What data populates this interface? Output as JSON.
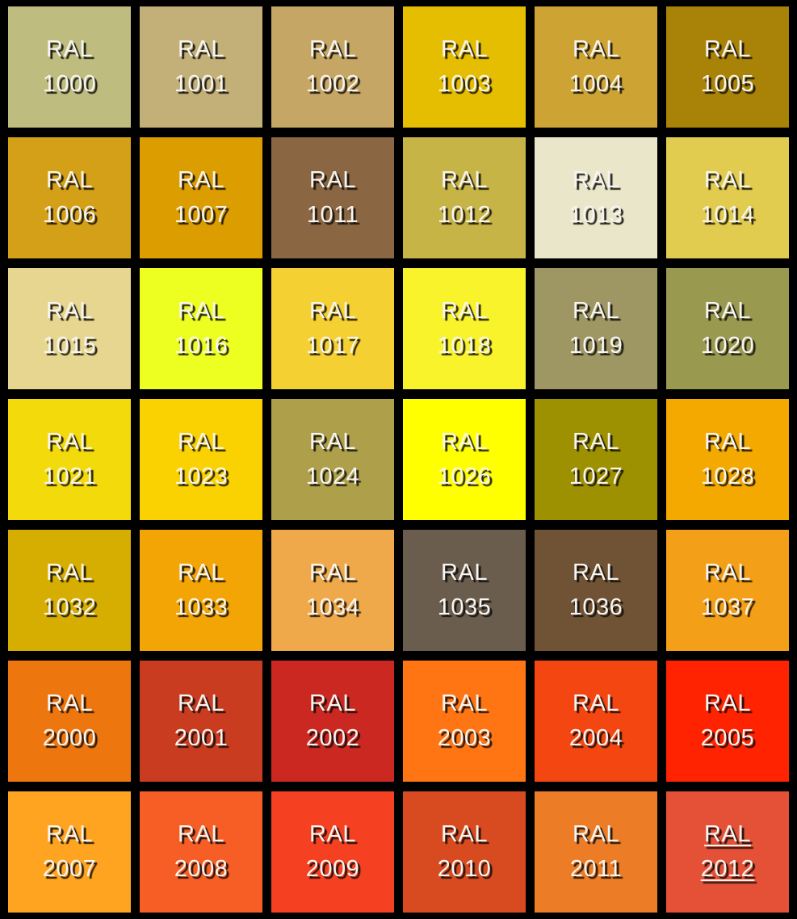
{
  "app": {
    "background_color": "#000000",
    "text_color": "#F7F5F2",
    "text_shadow_color": "#0F0D0A",
    "selected_code": "2012"
  },
  "grid": {
    "columns": 6,
    "rows": 7
  },
  "swatches": [
    {
      "prefix": "RAL",
      "code": "1000",
      "hex": "#BEBD7F",
      "selected": false
    },
    {
      "prefix": "RAL",
      "code": "1001",
      "hex": "#C2B078",
      "selected": false
    },
    {
      "prefix": "RAL",
      "code": "1002",
      "hex": "#C6A664",
      "selected": false
    },
    {
      "prefix": "RAL",
      "code": "1003",
      "hex": "#E5BE01",
      "selected": false
    },
    {
      "prefix": "RAL",
      "code": "1004",
      "hex": "#CDA434",
      "selected": false
    },
    {
      "prefix": "RAL",
      "code": "1005",
      "hex": "#A98307",
      "selected": false
    },
    {
      "prefix": "RAL",
      "code": "1006",
      "hex": "#D4A017",
      "selected": false
    },
    {
      "prefix": "RAL",
      "code": "1007",
      "hex": "#DC9D00",
      "selected": false
    },
    {
      "prefix": "RAL",
      "code": "1011",
      "hex": "#8A6642",
      "selected": false
    },
    {
      "prefix": "RAL",
      "code": "1012",
      "hex": "#C7B446",
      "selected": false
    },
    {
      "prefix": "RAL",
      "code": "1013",
      "hex": "#EAE6CA",
      "selected": false
    },
    {
      "prefix": "RAL",
      "code": "1014",
      "hex": "#E1CC4F",
      "selected": false
    },
    {
      "prefix": "RAL",
      "code": "1015",
      "hex": "#E6D690",
      "selected": false
    },
    {
      "prefix": "RAL",
      "code": "1016",
      "hex": "#EDFF21",
      "selected": false
    },
    {
      "prefix": "RAL",
      "code": "1017",
      "hex": "#F5D033",
      "selected": false
    },
    {
      "prefix": "RAL",
      "code": "1018",
      "hex": "#F8F32B",
      "selected": false
    },
    {
      "prefix": "RAL",
      "code": "1019",
      "hex": "#9E9764",
      "selected": false
    },
    {
      "prefix": "RAL",
      "code": "1020",
      "hex": "#999950",
      "selected": false
    },
    {
      "prefix": "RAL",
      "code": "1021",
      "hex": "#F3DA0B",
      "selected": false
    },
    {
      "prefix": "RAL",
      "code": "1023",
      "hex": "#FAD201",
      "selected": false
    },
    {
      "prefix": "RAL",
      "code": "1024",
      "hex": "#AEA04B",
      "selected": false
    },
    {
      "prefix": "RAL",
      "code": "1026",
      "hex": "#FFFF00",
      "selected": false
    },
    {
      "prefix": "RAL",
      "code": "1027",
      "hex": "#9D9101",
      "selected": false
    },
    {
      "prefix": "RAL",
      "code": "1028",
      "hex": "#F4A900",
      "selected": false
    },
    {
      "prefix": "RAL",
      "code": "1032",
      "hex": "#D6AE01",
      "selected": false
    },
    {
      "prefix": "RAL",
      "code": "1033",
      "hex": "#F3A505",
      "selected": false
    },
    {
      "prefix": "RAL",
      "code": "1034",
      "hex": "#EFA94A",
      "selected": false
    },
    {
      "prefix": "RAL",
      "code": "1035",
      "hex": "#6A5D4D",
      "selected": false
    },
    {
      "prefix": "RAL",
      "code": "1036",
      "hex": "#705335",
      "selected": false
    },
    {
      "prefix": "RAL",
      "code": "1037",
      "hex": "#F39F18",
      "selected": false
    },
    {
      "prefix": "RAL",
      "code": "2000",
      "hex": "#ED760E",
      "selected": false
    },
    {
      "prefix": "RAL",
      "code": "2001",
      "hex": "#C93C20",
      "selected": false
    },
    {
      "prefix": "RAL",
      "code": "2002",
      "hex": "#CB2821",
      "selected": false
    },
    {
      "prefix": "RAL",
      "code": "2003",
      "hex": "#FF7514",
      "selected": false
    },
    {
      "prefix": "RAL",
      "code": "2004",
      "hex": "#F44611",
      "selected": false
    },
    {
      "prefix": "RAL",
      "code": "2005",
      "hex": "#FF2301",
      "selected": false
    },
    {
      "prefix": "RAL",
      "code": "2007",
      "hex": "#FFA420",
      "selected": false
    },
    {
      "prefix": "RAL",
      "code": "2008",
      "hex": "#F75E25",
      "selected": false
    },
    {
      "prefix": "RAL",
      "code": "2009",
      "hex": "#F54021",
      "selected": false
    },
    {
      "prefix": "RAL",
      "code": "2010",
      "hex": "#D84B20",
      "selected": false
    },
    {
      "prefix": "RAL",
      "code": "2011",
      "hex": "#EC7C26",
      "selected": false
    },
    {
      "prefix": "RAL",
      "code": "2012",
      "hex": "#E55137",
      "selected": true
    }
  ]
}
